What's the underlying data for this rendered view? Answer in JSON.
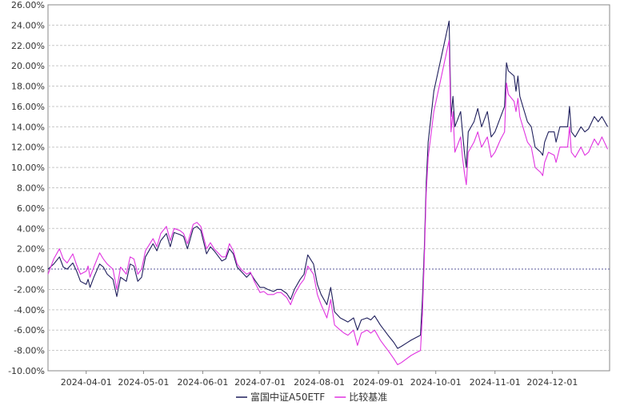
{
  "chart_data": {
    "type": "line",
    "ylim": [
      -10,
      26
    ],
    "y_ticks": [
      -10,
      -8,
      -6,
      -4,
      -2,
      0,
      2,
      4,
      6,
      8,
      10,
      12,
      14,
      16,
      18,
      20,
      22,
      24,
      26
    ],
    "y_tick_labels": [
      "-10.00%",
      "-8.00%",
      "-6.00%",
      "-4.00%",
      "-2.00%",
      "0.00%",
      "2.00%",
      "4.00%",
      "6.00%",
      "8.00%",
      "10.00%",
      "12.00%",
      "14.00%",
      "16.00%",
      "18.00%",
      "20.00%",
      "22.00%",
      "24.00%",
      "26.00%"
    ],
    "xlim": [
      "2024-03-12",
      "2024-12-31"
    ],
    "x_ticks": [
      "2024-04-01",
      "2024-05-01",
      "2024-06-01",
      "2024-07-01",
      "2024-08-01",
      "2024-09-01",
      "2024-10-01",
      "2024-11-01",
      "2024-12-01"
    ],
    "grid": true,
    "zero_line": true,
    "legend_position": "bottom",
    "series": [
      {
        "name": "富国中证A50ETF",
        "color": "#1f1f5c",
        "points": [
          [
            "2024-03-12",
            0.0
          ],
          [
            "2024-03-15",
            0.5
          ],
          [
            "2024-03-18",
            1.2
          ],
          [
            "2024-03-20",
            0.2
          ],
          [
            "2024-03-22",
            0.0
          ],
          [
            "2024-03-25",
            0.6
          ],
          [
            "2024-03-27",
            -0.2
          ],
          [
            "2024-03-29",
            -1.2
          ],
          [
            "2024-04-01",
            -1.5
          ],
          [
            "2024-04-02",
            -1.0
          ],
          [
            "2024-04-03",
            -1.8
          ],
          [
            "2024-04-05",
            -0.8
          ],
          [
            "2024-04-08",
            0.5
          ],
          [
            "2024-04-10",
            0.2
          ],
          [
            "2024-04-12",
            -0.5
          ],
          [
            "2024-04-15",
            -1.0
          ],
          [
            "2024-04-17",
            -2.7
          ],
          [
            "2024-04-19",
            -0.8
          ],
          [
            "2024-04-22",
            -1.2
          ],
          [
            "2024-04-24",
            0.5
          ],
          [
            "2024-04-26",
            0.3
          ],
          [
            "2024-04-28",
            -1.2
          ],
          [
            "2024-04-30",
            -0.8
          ],
          [
            "2024-05-02",
            1.2
          ],
          [
            "2024-05-06",
            2.5
          ],
          [
            "2024-05-08",
            1.8
          ],
          [
            "2024-05-10",
            2.8
          ],
          [
            "2024-05-13",
            3.5
          ],
          [
            "2024-05-15",
            2.2
          ],
          [
            "2024-05-17",
            3.6
          ],
          [
            "2024-05-20",
            3.4
          ],
          [
            "2024-05-22",
            3.2
          ],
          [
            "2024-05-24",
            2.0
          ],
          [
            "2024-05-27",
            4.0
          ],
          [
            "2024-05-29",
            4.2
          ],
          [
            "2024-05-31",
            3.8
          ],
          [
            "2024-06-03",
            1.5
          ],
          [
            "2024-06-05",
            2.2
          ],
          [
            "2024-06-07",
            1.8
          ],
          [
            "2024-06-11",
            0.8
          ],
          [
            "2024-06-13",
            1.0
          ],
          [
            "2024-06-15",
            2.0
          ],
          [
            "2024-06-17",
            1.5
          ],
          [
            "2024-06-19",
            0.2
          ],
          [
            "2024-06-21",
            -0.2
          ],
          [
            "2024-06-24",
            -0.8
          ],
          [
            "2024-06-26",
            -0.4
          ],
          [
            "2024-06-28",
            -1.0
          ],
          [
            "2024-07-01",
            -1.8
          ],
          [
            "2024-07-03",
            -1.8
          ],
          [
            "2024-07-05",
            -2.0
          ],
          [
            "2024-07-08",
            -2.2
          ],
          [
            "2024-07-10",
            -2.0
          ],
          [
            "2024-07-12",
            -2.0
          ],
          [
            "2024-07-15",
            -2.4
          ],
          [
            "2024-07-17",
            -3.0
          ],
          [
            "2024-07-19",
            -2.0
          ],
          [
            "2024-07-22",
            -1.0
          ],
          [
            "2024-07-24",
            -0.5
          ],
          [
            "2024-07-26",
            1.4
          ],
          [
            "2024-07-29",
            0.5
          ],
          [
            "2024-07-31",
            -1.5
          ],
          [
            "2024-08-02",
            -2.5
          ],
          [
            "2024-08-05",
            -3.5
          ],
          [
            "2024-08-07",
            -1.8
          ],
          [
            "2024-08-09",
            -4.2
          ],
          [
            "2024-08-12",
            -4.8
          ],
          [
            "2024-08-14",
            -5.0
          ],
          [
            "2024-08-16",
            -5.2
          ],
          [
            "2024-08-19",
            -4.8
          ],
          [
            "2024-08-21",
            -6.0
          ],
          [
            "2024-08-23",
            -5.0
          ],
          [
            "2024-08-26",
            -4.8
          ],
          [
            "2024-08-28",
            -5.0
          ],
          [
            "2024-08-30",
            -4.6
          ],
          [
            "2024-09-02",
            -5.5
          ],
          [
            "2024-09-04",
            -6.0
          ],
          [
            "2024-09-06",
            -6.5
          ],
          [
            "2024-09-09",
            -7.2
          ],
          [
            "2024-09-11",
            -7.8
          ],
          [
            "2024-09-13",
            -7.6
          ],
          [
            "2024-09-18",
            -7.0
          ],
          [
            "2024-09-20",
            -6.8
          ],
          [
            "2024-09-23",
            -6.5
          ],
          [
            "2024-09-24",
            -3.0
          ],
          [
            "2024-09-25",
            2.0
          ],
          [
            "2024-09-26",
            8.5
          ],
          [
            "2024-09-27",
            12.5
          ],
          [
            "2024-09-30",
            17.5
          ],
          [
            "2024-10-08",
            24.4
          ],
          [
            "2024-10-09",
            15.0
          ],
          [
            "2024-10-10",
            17.0
          ],
          [
            "2024-10-11",
            14.0
          ],
          [
            "2024-10-14",
            15.5
          ],
          [
            "2024-10-15",
            13.5
          ],
          [
            "2024-10-16",
            11.5
          ],
          [
            "2024-10-17",
            10.0
          ],
          [
            "2024-10-18",
            13.5
          ],
          [
            "2024-10-21",
            14.5
          ],
          [
            "2024-10-23",
            15.8
          ],
          [
            "2024-10-25",
            14.0
          ],
          [
            "2024-10-28",
            15.5
          ],
          [
            "2024-10-30",
            13.0
          ],
          [
            "2024-11-01",
            13.5
          ],
          [
            "2024-11-04",
            15.0
          ],
          [
            "2024-11-06",
            16.0
          ],
          [
            "2024-11-07",
            20.3
          ],
          [
            "2024-11-08",
            19.5
          ],
          [
            "2024-11-11",
            19.0
          ],
          [
            "2024-11-12",
            17.5
          ],
          [
            "2024-11-13",
            19.0
          ],
          [
            "2024-11-14",
            17.0
          ],
          [
            "2024-11-18",
            14.5
          ],
          [
            "2024-11-20",
            14.0
          ],
          [
            "2024-11-22",
            12.0
          ],
          [
            "2024-11-25",
            11.5
          ],
          [
            "2024-11-26",
            11.2
          ],
          [
            "2024-11-27",
            12.5
          ],
          [
            "2024-11-29",
            13.5
          ],
          [
            "2024-12-02",
            13.5
          ],
          [
            "2024-12-03",
            12.5
          ],
          [
            "2024-12-05",
            14.0
          ],
          [
            "2024-12-09",
            14.0
          ],
          [
            "2024-12-10",
            16.0
          ],
          [
            "2024-12-11",
            13.5
          ],
          [
            "2024-12-13",
            13.0
          ],
          [
            "2024-12-16",
            14.0
          ],
          [
            "2024-12-18",
            13.5
          ],
          [
            "2024-12-20",
            13.8
          ],
          [
            "2024-12-23",
            15.0
          ],
          [
            "2024-12-25",
            14.5
          ],
          [
            "2024-12-27",
            15.0
          ],
          [
            "2024-12-30",
            14.0
          ]
        ]
      },
      {
        "name": "比较基准",
        "color": "#e033e0",
        "points": [
          [
            "2024-03-12",
            -0.5
          ],
          [
            "2024-03-15",
            1.0
          ],
          [
            "2024-03-18",
            2.0
          ],
          [
            "2024-03-20",
            1.0
          ],
          [
            "2024-03-22",
            0.6
          ],
          [
            "2024-03-25",
            1.5
          ],
          [
            "2024-03-27",
            0.4
          ],
          [
            "2024-03-29",
            -0.5
          ],
          [
            "2024-04-01",
            -0.2
          ],
          [
            "2024-04-02",
            0.3
          ],
          [
            "2024-04-03",
            -0.8
          ],
          [
            "2024-04-05",
            0.2
          ],
          [
            "2024-04-08",
            1.6
          ],
          [
            "2024-04-10",
            1.0
          ],
          [
            "2024-04-12",
            0.5
          ],
          [
            "2024-04-15",
            0.0
          ],
          [
            "2024-04-17",
            -2.0
          ],
          [
            "2024-04-19",
            0.2
          ],
          [
            "2024-04-22",
            -0.5
          ],
          [
            "2024-04-24",
            1.2
          ],
          [
            "2024-04-26",
            1.0
          ],
          [
            "2024-04-28",
            -0.5
          ],
          [
            "2024-04-30",
            0.0
          ],
          [
            "2024-05-02",
            1.8
          ],
          [
            "2024-05-06",
            3.0
          ],
          [
            "2024-05-08",
            2.2
          ],
          [
            "2024-05-10",
            3.5
          ],
          [
            "2024-05-13",
            4.2
          ],
          [
            "2024-05-15",
            2.8
          ],
          [
            "2024-05-17",
            4.0
          ],
          [
            "2024-05-20",
            3.8
          ],
          [
            "2024-05-22",
            3.5
          ],
          [
            "2024-05-24",
            2.5
          ],
          [
            "2024-05-27",
            4.4
          ],
          [
            "2024-05-29",
            4.6
          ],
          [
            "2024-05-31",
            4.2
          ],
          [
            "2024-06-03",
            2.0
          ],
          [
            "2024-06-05",
            2.6
          ],
          [
            "2024-06-07",
            2.0
          ],
          [
            "2024-06-11",
            1.2
          ],
          [
            "2024-06-13",
            1.2
          ],
          [
            "2024-06-15",
            2.5
          ],
          [
            "2024-06-17",
            1.8
          ],
          [
            "2024-06-19",
            0.5
          ],
          [
            "2024-06-21",
            0.0
          ],
          [
            "2024-06-24",
            -0.5
          ],
          [
            "2024-06-26",
            -0.3
          ],
          [
            "2024-06-28",
            -1.2
          ],
          [
            "2024-07-01",
            -2.3
          ],
          [
            "2024-07-03",
            -2.2
          ],
          [
            "2024-07-05",
            -2.5
          ],
          [
            "2024-07-08",
            -2.5
          ],
          [
            "2024-07-10",
            -2.3
          ],
          [
            "2024-07-12",
            -2.3
          ],
          [
            "2024-07-15",
            -2.8
          ],
          [
            "2024-07-17",
            -3.5
          ],
          [
            "2024-07-19",
            -2.5
          ],
          [
            "2024-07-22",
            -1.5
          ],
          [
            "2024-07-24",
            -1.0
          ],
          [
            "2024-07-26",
            0.3
          ],
          [
            "2024-07-29",
            -0.5
          ],
          [
            "2024-07-31",
            -2.5
          ],
          [
            "2024-08-02",
            -3.5
          ],
          [
            "2024-08-05",
            -4.8
          ],
          [
            "2024-08-07",
            -3.0
          ],
          [
            "2024-08-09",
            -5.5
          ],
          [
            "2024-08-12",
            -6.0
          ],
          [
            "2024-08-14",
            -6.3
          ],
          [
            "2024-08-16",
            -6.5
          ],
          [
            "2024-08-19",
            -6.0
          ],
          [
            "2024-08-21",
            -7.5
          ],
          [
            "2024-08-23",
            -6.3
          ],
          [
            "2024-08-26",
            -6.0
          ],
          [
            "2024-08-28",
            -6.3
          ],
          [
            "2024-08-30",
            -6.0
          ],
          [
            "2024-09-02",
            -7.0
          ],
          [
            "2024-09-04",
            -7.5
          ],
          [
            "2024-09-06",
            -8.0
          ],
          [
            "2024-09-09",
            -8.8
          ],
          [
            "2024-09-11",
            -9.4
          ],
          [
            "2024-09-13",
            -9.2
          ],
          [
            "2024-09-18",
            -8.5
          ],
          [
            "2024-09-20",
            -8.3
          ],
          [
            "2024-09-23",
            -8.0
          ],
          [
            "2024-09-24",
            -4.5
          ],
          [
            "2024-09-25",
            1.0
          ],
          [
            "2024-09-26",
            7.5
          ],
          [
            "2024-09-27",
            11.0
          ],
          [
            "2024-09-30",
            15.5
          ],
          [
            "2024-10-08",
            22.5
          ],
          [
            "2024-10-09",
            13.5
          ],
          [
            "2024-10-10",
            15.5
          ],
          [
            "2024-10-11",
            11.5
          ],
          [
            "2024-10-14",
            13.0
          ],
          [
            "2024-10-15",
            11.0
          ],
          [
            "2024-10-16",
            9.5
          ],
          [
            "2024-10-17",
            8.3
          ],
          [
            "2024-10-18",
            11.5
          ],
          [
            "2024-10-21",
            12.5
          ],
          [
            "2024-10-23",
            13.5
          ],
          [
            "2024-10-25",
            12.0
          ],
          [
            "2024-10-28",
            13.0
          ],
          [
            "2024-10-30",
            11.0
          ],
          [
            "2024-11-01",
            11.5
          ],
          [
            "2024-11-04",
            12.8
          ],
          [
            "2024-11-06",
            13.5
          ],
          [
            "2024-11-07",
            18.3
          ],
          [
            "2024-11-08",
            17.2
          ],
          [
            "2024-11-11",
            16.5
          ],
          [
            "2024-11-12",
            15.5
          ],
          [
            "2024-11-13",
            16.8
          ],
          [
            "2024-11-14",
            15.0
          ],
          [
            "2024-11-18",
            12.5
          ],
          [
            "2024-11-20",
            12.0
          ],
          [
            "2024-11-22",
            10.0
          ],
          [
            "2024-11-25",
            9.5
          ],
          [
            "2024-11-26",
            9.2
          ],
          [
            "2024-11-27",
            10.5
          ],
          [
            "2024-11-29",
            11.5
          ],
          [
            "2024-12-02",
            11.2
          ],
          [
            "2024-12-03",
            10.5
          ],
          [
            "2024-12-05",
            12.0
          ],
          [
            "2024-12-09",
            12.0
          ],
          [
            "2024-12-10",
            14.0
          ],
          [
            "2024-12-11",
            11.5
          ],
          [
            "2024-12-13",
            11.0
          ],
          [
            "2024-12-16",
            12.0
          ],
          [
            "2024-12-18",
            11.2
          ],
          [
            "2024-12-20",
            11.5
          ],
          [
            "2024-12-23",
            12.8
          ],
          [
            "2024-12-25",
            12.2
          ],
          [
            "2024-12-27",
            13.0
          ],
          [
            "2024-12-30",
            11.8
          ]
        ]
      }
    ]
  }
}
